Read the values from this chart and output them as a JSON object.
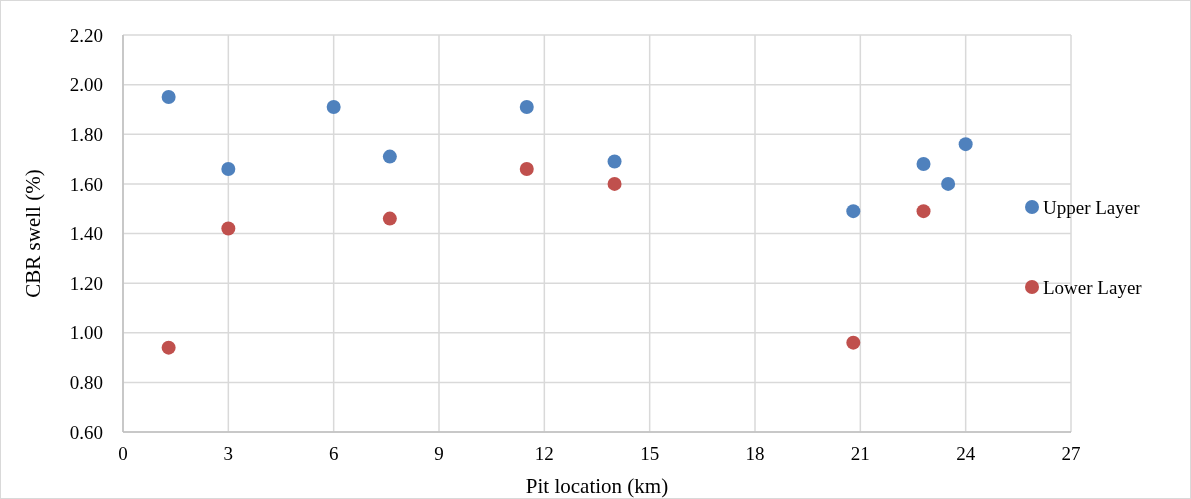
{
  "chart_data": {
    "type": "scatter",
    "xlabel": "Pit location (km)",
    "ylabel": "CBR swell (%)",
    "xlim": [
      0,
      27
    ],
    "xticks": [
      0,
      3,
      6,
      9,
      12,
      15,
      18,
      21,
      24,
      27
    ],
    "ylim": [
      0.6,
      2.2
    ],
    "yticks": [
      {
        "value": 0.6,
        "label": "0.60"
      },
      {
        "value": 0.8,
        "label": "0.80"
      },
      {
        "value": 1.0,
        "label": "1.00"
      },
      {
        "value": 1.2,
        "label": "1.20"
      },
      {
        "value": 1.4,
        "label": "1.40"
      },
      {
        "value": 1.6,
        "label": "1.60"
      },
      {
        "value": 1.8,
        "label": "1.80"
      },
      {
        "value": 2.0,
        "label": "2.00"
      },
      {
        "value": 2.2,
        "label": "2.20"
      }
    ],
    "grid": true,
    "legend": "right",
    "marker": "circle",
    "series": [
      {
        "name": "Upper Layer",
        "color": "#4f81bd",
        "x": [
          1.3,
          3.0,
          6.0,
          7.6,
          11.5,
          14.0,
          20.8,
          22.8,
          23.5,
          24.0
        ],
        "values": [
          1.95,
          1.66,
          1.91,
          1.71,
          1.91,
          1.69,
          1.49,
          1.68,
          1.6,
          1.76
        ]
      },
      {
        "name": "Lower Layer",
        "color": "#c0504d",
        "x": [
          1.3,
          3.0,
          7.6,
          11.5,
          14.0,
          20.8,
          22.8
        ],
        "values": [
          0.94,
          1.42,
          1.46,
          1.66,
          1.6,
          0.96,
          1.49
        ]
      }
    ]
  }
}
